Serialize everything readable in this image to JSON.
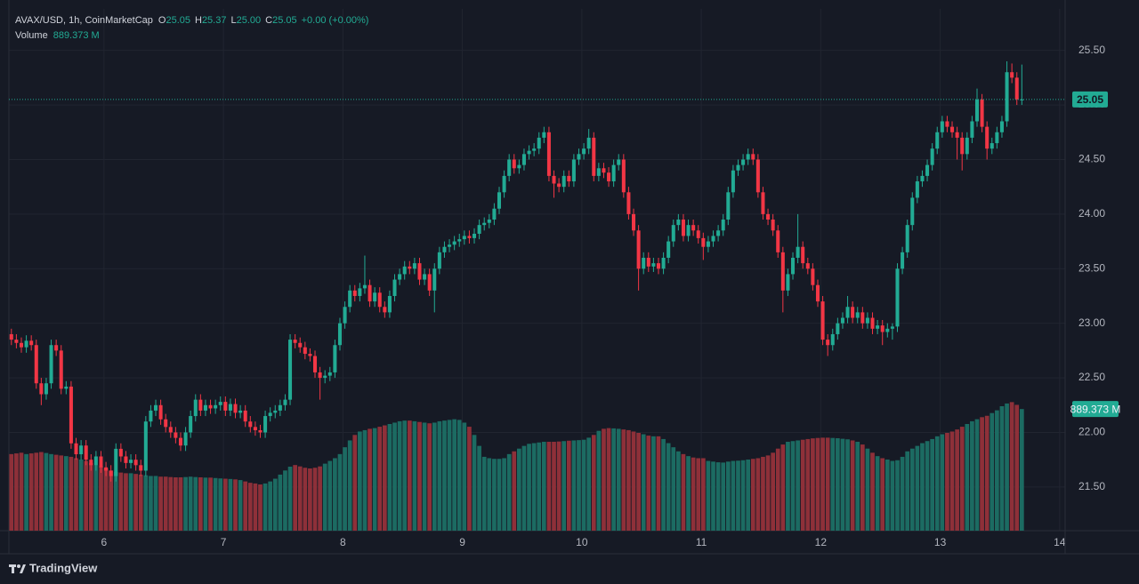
{
  "chart_data": {
    "type": "candlestick",
    "title": "AVAX/USD, 1h, CoinMarketCap",
    "ohlc_keys": [
      "O",
      "H",
      "L",
      "C"
    ],
    "ohlc_labels": [
      "25.05",
      "25.37",
      "25.00",
      "25.05"
    ],
    "change": "+0.00 (+0.00%)",
    "volume_title": "Volume",
    "volume_label": "889.373 M",
    "up_color": "#22ab94",
    "down_color": "#f23645",
    "volume_up_color": "#1c6b62",
    "volume_down_color": "#8e3039",
    "grid": true,
    "last_price_line": true,
    "xlim": [
      0,
      212.2
    ],
    "xticks": [
      {
        "value": 19.1,
        "label": "6"
      },
      {
        "value": 43.1,
        "label": "7"
      },
      {
        "value": 67.1,
        "label": "8"
      },
      {
        "value": 91.1,
        "label": "9"
      },
      {
        "value": 115.1,
        "label": "10"
      },
      {
        "value": 139.1,
        "label": "11"
      },
      {
        "value": 163.1,
        "label": "12"
      },
      {
        "value": 187.1,
        "label": "13"
      },
      {
        "value": 211.1,
        "label": "14"
      }
    ],
    "ylim": [
      21.1,
      25.88
    ],
    "yticks": [
      {
        "value": 21.5,
        "label": "21.50"
      },
      {
        "value": 22,
        "label": "22.00"
      },
      {
        "value": 22.5,
        "label": "22.50"
      },
      {
        "value": 23,
        "label": "23.00"
      },
      {
        "value": 23.5,
        "label": "23.50"
      },
      {
        "value": 24,
        "label": "24.00"
      },
      {
        "value": 24.5,
        "label": "24.50"
      },
      {
        "value": 25,
        "label": "25.00"
      },
      {
        "value": 25.5,
        "label": "25.50"
      }
    ],
    "vlim": [
      0,
      1040
    ],
    "candles": [
      [
        22.9,
        22.95,
        22.8,
        22.85
      ],
      [
        22.85,
        22.9,
        22.77,
        22.82
      ],
      [
        22.82,
        22.87,
        22.73,
        22.78
      ],
      [
        22.78,
        22.89,
        22.73,
        22.84
      ],
      [
        22.84,
        22.89,
        22.75,
        22.8
      ],
      [
        22.8,
        22.85,
        22.4,
        22.45
      ],
      [
        22.45,
        22.5,
        22.25,
        22.35
      ],
      [
        22.35,
        22.5,
        22.3,
        22.45
      ],
      [
        22.45,
        22.85,
        22.4,
        22.8
      ],
      [
        22.8,
        22.85,
        22.7,
        22.75
      ],
      [
        22.75,
        22.8,
        22.35,
        22.4
      ],
      [
        22.4,
        22.47,
        22.35,
        22.42
      ],
      [
        22.42,
        22.47,
        21.85,
        21.9
      ],
      [
        21.9,
        21.95,
        21.75,
        21.8
      ],
      [
        21.8,
        21.93,
        21.75,
        21.88
      ],
      [
        21.88,
        21.93,
        21.7,
        21.75
      ],
      [
        21.75,
        21.8,
        21.65,
        21.7
      ],
      [
        21.7,
        21.83,
        21.65,
        21.78
      ],
      [
        21.78,
        21.83,
        21.63,
        21.68
      ],
      [
        21.68,
        21.73,
        21.6,
        21.65
      ],
      [
        21.65,
        21.7,
        21.55,
        21.6
      ],
      [
        21.6,
        21.9,
        21.55,
        21.85
      ],
      [
        21.85,
        21.9,
        21.73,
        21.78
      ],
      [
        21.78,
        21.83,
        21.67,
        21.72
      ],
      [
        21.72,
        21.8,
        21.67,
        21.75
      ],
      [
        21.75,
        21.8,
        21.65,
        21.7
      ],
      [
        21.7,
        21.75,
        21.6,
        21.65
      ],
      [
        21.65,
        22.15,
        21.6,
        22.1
      ],
      [
        22.1,
        22.25,
        22.05,
        22.2
      ],
      [
        22.2,
        22.3,
        22.15,
        22.25
      ],
      [
        22.25,
        22.3,
        22.07,
        22.12
      ],
      [
        22.12,
        22.17,
        22.0,
        22.05
      ],
      [
        22.05,
        22.1,
        21.95,
        22.0
      ],
      [
        22.0,
        22.05,
        21.9,
        21.95
      ],
      [
        21.95,
        22.0,
        21.83,
        21.88
      ],
      [
        21.88,
        22.05,
        21.83,
        22.0
      ],
      [
        22.0,
        22.2,
        21.95,
        22.15
      ],
      [
        22.15,
        22.35,
        22.1,
        22.3
      ],
      [
        22.3,
        22.35,
        22.15,
        22.2
      ],
      [
        22.2,
        22.3,
        22.15,
        22.25
      ],
      [
        22.25,
        22.3,
        22.17,
        22.22
      ],
      [
        22.22,
        22.3,
        22.17,
        22.25
      ],
      [
        22.25,
        22.33,
        22.2,
        22.28
      ],
      [
        22.28,
        22.33,
        22.15,
        22.2
      ],
      [
        22.2,
        22.31,
        22.15,
        22.26
      ],
      [
        22.26,
        22.31,
        22.13,
        22.18
      ],
      [
        22.18,
        22.25,
        22.13,
        22.2
      ],
      [
        22.2,
        22.25,
        22.05,
        22.1
      ],
      [
        22.1,
        22.15,
        22.0,
        22.05
      ],
      [
        22.05,
        22.1,
        21.97,
        22.02
      ],
      [
        22.02,
        22.07,
        21.95,
        22.0
      ],
      [
        22.0,
        22.2,
        21.95,
        22.15
      ],
      [
        22.15,
        22.23,
        22.1,
        22.18
      ],
      [
        22.18,
        22.25,
        22.13,
        22.2
      ],
      [
        22.2,
        22.3,
        22.15,
        22.25
      ],
      [
        22.25,
        22.35,
        22.2,
        22.3
      ],
      [
        22.3,
        22.9,
        22.25,
        22.85
      ],
      [
        22.85,
        22.9,
        22.77,
        22.82
      ],
      [
        22.82,
        22.87,
        22.73,
        22.78
      ],
      [
        22.78,
        22.83,
        22.67,
        22.72
      ],
      [
        22.72,
        22.77,
        22.65,
        22.7
      ],
      [
        22.7,
        22.75,
        22.5,
        22.55
      ],
      [
        22.55,
        22.6,
        22.3,
        22.5
      ],
      [
        22.5,
        22.57,
        22.45,
        22.52
      ],
      [
        22.52,
        22.6,
        22.47,
        22.55
      ],
      [
        22.55,
        22.85,
        22.5,
        22.8
      ],
      [
        22.8,
        23.05,
        22.75,
        23.0
      ],
      [
        23.0,
        23.2,
        22.95,
        23.15
      ],
      [
        23.15,
        23.35,
        23.1,
        23.3
      ],
      [
        23.3,
        23.35,
        23.2,
        23.25
      ],
      [
        23.25,
        23.37,
        23.2,
        23.32
      ],
      [
        23.32,
        23.62,
        23.27,
        23.35
      ],
      [
        23.35,
        23.4,
        23.15,
        23.2
      ],
      [
        23.2,
        23.33,
        23.15,
        23.28
      ],
      [
        23.28,
        23.33,
        23.1,
        23.15
      ],
      [
        23.15,
        23.2,
        23.05,
        23.1
      ],
      [
        23.1,
        23.3,
        23.05,
        23.25
      ],
      [
        23.25,
        23.45,
        23.2,
        23.4
      ],
      [
        23.4,
        23.5,
        23.35,
        23.45
      ],
      [
        23.45,
        23.57,
        23.4,
        23.52
      ],
      [
        23.52,
        23.57,
        23.45,
        23.5
      ],
      [
        23.5,
        23.6,
        23.45,
        23.55
      ],
      [
        23.55,
        23.6,
        23.35,
        23.4
      ],
      [
        23.4,
        23.5,
        23.35,
        23.45
      ],
      [
        23.45,
        23.5,
        23.25,
        23.3
      ],
      [
        23.3,
        23.55,
        23.1,
        23.5
      ],
      [
        23.5,
        23.7,
        23.45,
        23.65
      ],
      [
        23.65,
        23.75,
        23.6,
        23.7
      ],
      [
        23.7,
        23.77,
        23.65,
        23.72
      ],
      [
        23.72,
        23.8,
        23.67,
        23.75
      ],
      [
        23.75,
        23.82,
        23.7,
        23.77
      ],
      [
        23.77,
        23.85,
        23.72,
        23.8
      ],
      [
        23.8,
        23.85,
        23.73,
        23.78
      ],
      [
        23.78,
        23.87,
        23.73,
        23.82
      ],
      [
        23.82,
        23.95,
        23.77,
        23.9
      ],
      [
        23.9,
        23.97,
        23.85,
        23.92
      ],
      [
        23.92,
        24.0,
        23.87,
        23.95
      ],
      [
        23.95,
        24.1,
        23.9,
        24.05
      ],
      [
        24.05,
        24.25,
        24.0,
        24.2
      ],
      [
        24.2,
        24.4,
        24.15,
        24.35
      ],
      [
        24.35,
        24.55,
        24.3,
        24.5
      ],
      [
        24.5,
        24.55,
        24.37,
        24.42
      ],
      [
        24.42,
        24.5,
        24.37,
        24.45
      ],
      [
        24.45,
        24.6,
        24.4,
        24.55
      ],
      [
        24.55,
        24.63,
        24.5,
        24.58
      ],
      [
        24.58,
        24.65,
        24.53,
        24.6
      ],
      [
        24.6,
        24.75,
        24.55,
        24.7
      ],
      [
        24.7,
        24.8,
        24.65,
        24.75
      ],
      [
        24.75,
        24.8,
        24.3,
        24.35
      ],
      [
        24.35,
        24.4,
        24.15,
        24.28
      ],
      [
        24.28,
        24.33,
        24.2,
        24.25
      ],
      [
        24.25,
        24.4,
        24.2,
        24.35
      ],
      [
        24.35,
        24.4,
        24.25,
        24.3
      ],
      [
        24.3,
        24.55,
        24.25,
        24.5
      ],
      [
        24.5,
        24.6,
        24.45,
        24.55
      ],
      [
        24.55,
        24.65,
        24.5,
        24.6
      ],
      [
        24.6,
        24.78,
        24.55,
        24.7
      ],
      [
        24.7,
        24.75,
        24.3,
        24.35
      ],
      [
        24.35,
        24.47,
        24.3,
        24.42
      ],
      [
        24.42,
        24.47,
        24.33,
        24.38
      ],
      [
        24.38,
        24.43,
        24.25,
        24.3
      ],
      [
        24.3,
        24.5,
        24.25,
        24.45
      ],
      [
        24.45,
        24.55,
        24.4,
        24.5
      ],
      [
        24.5,
        24.55,
        24.15,
        24.2
      ],
      [
        24.2,
        24.25,
        23.95,
        24.0
      ],
      [
        24.0,
        24.05,
        23.8,
        23.85
      ],
      [
        23.85,
        23.9,
        23.3,
        23.5
      ],
      [
        23.5,
        23.65,
        23.45,
        23.6
      ],
      [
        23.6,
        23.65,
        23.47,
        23.52
      ],
      [
        23.52,
        23.6,
        23.47,
        23.55
      ],
      [
        23.55,
        23.6,
        23.45,
        23.5
      ],
      [
        23.5,
        23.65,
        23.45,
        23.6
      ],
      [
        23.6,
        23.8,
        23.55,
        23.75
      ],
      [
        23.75,
        23.95,
        23.7,
        23.9
      ],
      [
        23.9,
        24.0,
        23.85,
        23.95
      ],
      [
        23.95,
        24.0,
        23.75,
        23.8
      ],
      [
        23.8,
        23.95,
        23.75,
        23.9
      ],
      [
        23.9,
        23.95,
        23.8,
        23.85
      ],
      [
        23.85,
        23.9,
        23.73,
        23.78
      ],
      [
        23.78,
        23.83,
        23.58,
        23.7
      ],
      [
        23.7,
        23.8,
        23.65,
        23.75
      ],
      [
        23.75,
        23.85,
        23.7,
        23.8
      ],
      [
        23.8,
        23.9,
        23.75,
        23.85
      ],
      [
        23.85,
        24.0,
        23.8,
        23.95
      ],
      [
        23.95,
        24.25,
        23.9,
        24.2
      ],
      [
        24.2,
        24.45,
        24.15,
        24.4
      ],
      [
        24.4,
        24.5,
        24.35,
        24.45
      ],
      [
        24.45,
        24.55,
        24.4,
        24.5
      ],
      [
        24.5,
        24.6,
        24.45,
        24.55
      ],
      [
        24.55,
        24.6,
        24.45,
        24.5
      ],
      [
        24.5,
        24.55,
        24.15,
        24.2
      ],
      [
        24.2,
        24.25,
        23.95,
        24.0
      ],
      [
        24.0,
        24.05,
        23.9,
        23.95
      ],
      [
        23.95,
        24.0,
        23.8,
        23.85
      ],
      [
        23.85,
        23.9,
        23.6,
        23.65
      ],
      [
        23.65,
        23.7,
        23.1,
        23.3
      ],
      [
        23.3,
        23.5,
        23.25,
        23.45
      ],
      [
        23.45,
        23.65,
        23.4,
        23.6
      ],
      [
        23.6,
        24.0,
        23.55,
        23.7
      ],
      [
        23.7,
        23.75,
        23.5,
        23.55
      ],
      [
        23.55,
        23.6,
        23.45,
        23.5
      ],
      [
        23.5,
        23.55,
        23.3,
        23.35
      ],
      [
        23.35,
        23.4,
        23.15,
        23.2
      ],
      [
        23.2,
        23.25,
        22.8,
        22.85
      ],
      [
        22.85,
        22.9,
        22.7,
        22.8
      ],
      [
        22.8,
        22.95,
        22.75,
        22.9
      ],
      [
        22.9,
        23.05,
        22.85,
        23.0
      ],
      [
        23.0,
        23.1,
        22.95,
        23.05
      ],
      [
        23.05,
        23.25,
        23.0,
        23.15
      ],
      [
        23.15,
        23.2,
        23.0,
        23.05
      ],
      [
        23.05,
        23.15,
        23.0,
        23.1
      ],
      [
        23.1,
        23.15,
        22.95,
        23.0
      ],
      [
        23.0,
        23.1,
        22.95,
        23.05
      ],
      [
        23.05,
        23.1,
        22.9,
        22.95
      ],
      [
        22.95,
        23.03,
        22.9,
        22.98
      ],
      [
        22.98,
        23.03,
        22.8,
        22.92
      ],
      [
        22.92,
        23.0,
        22.87,
        22.95
      ],
      [
        22.95,
        23.0,
        22.85,
        22.97
      ],
      [
        22.97,
        23.55,
        22.92,
        23.5
      ],
      [
        23.5,
        23.7,
        23.45,
        23.65
      ],
      [
        23.65,
        23.95,
        23.6,
        23.9
      ],
      [
        23.9,
        24.2,
        23.85,
        24.15
      ],
      [
        24.15,
        24.35,
        24.1,
        24.3
      ],
      [
        24.3,
        24.4,
        24.25,
        24.35
      ],
      [
        24.35,
        24.5,
        24.3,
        24.45
      ],
      [
        24.45,
        24.65,
        24.4,
        24.6
      ],
      [
        24.6,
        24.8,
        24.55,
        24.75
      ],
      [
        24.75,
        24.9,
        24.7,
        24.85
      ],
      [
        24.85,
        24.9,
        24.75,
        24.8
      ],
      [
        24.8,
        24.85,
        24.7,
        24.75
      ],
      [
        24.75,
        24.8,
        24.5,
        24.7
      ],
      [
        24.7,
        24.75,
        24.4,
        24.55
      ],
      [
        24.55,
        24.75,
        24.5,
        24.7
      ],
      [
        24.7,
        24.9,
        24.65,
        24.85
      ],
      [
        24.85,
        25.15,
        24.8,
        25.05
      ],
      [
        25.05,
        25.1,
        24.75,
        24.8
      ],
      [
        24.8,
        24.85,
        24.5,
        24.6
      ],
      [
        24.6,
        24.7,
        24.55,
        24.65
      ],
      [
        24.65,
        24.8,
        24.6,
        24.75
      ],
      [
        24.75,
        24.9,
        24.7,
        24.85
      ],
      [
        24.85,
        25.4,
        24.8,
        25.3
      ],
      [
        25.3,
        25.38,
        25.2,
        25.25
      ],
      [
        25.25,
        25.3,
        25.0,
        25.05
      ],
      [
        25.05,
        25.37,
        25.0,
        25.05
      ]
    ],
    "volumes": [
      560,
      565,
      570,
      560,
      565,
      570,
      575,
      568,
      560,
      555,
      550,
      545,
      540,
      530,
      520,
      510,
      495,
      480,
      470,
      455,
      440,
      430,
      425,
      420,
      420,
      415,
      410,
      405,
      400,
      400,
      395,
      395,
      392,
      390,
      390,
      392,
      395,
      392,
      390,
      388,
      388,
      385,
      382,
      380,
      378,
      375,
      370,
      360,
      350,
      345,
      338,
      345,
      360,
      380,
      410,
      440,
      468,
      480,
      470,
      460,
      455,
      460,
      470,
      490,
      510,
      530,
      560,
      610,
      660,
      700,
      725,
      735,
      745,
      750,
      760,
      770,
      780,
      790,
      800,
      805,
      805,
      800,
      795,
      790,
      785,
      790,
      800,
      805,
      810,
      815,
      810,
      790,
      760,
      700,
      620,
      540,
      530,
      525,
      525,
      530,
      560,
      580,
      600,
      620,
      635,
      640,
      645,
      650,
      650,
      650,
      652,
      655,
      658,
      660,
      662,
      665,
      680,
      700,
      730,
      745,
      750,
      748,
      745,
      740,
      735,
      725,
      715,
      705,
      695,
      690,
      690,
      670,
      640,
      610,
      580,
      560,
      545,
      535,
      530,
      530,
      510,
      505,
      500,
      498,
      505,
      510,
      512,
      515,
      520,
      525,
      530,
      540,
      550,
      570,
      600,
      630,
      650,
      655,
      660,
      665,
      670,
      675,
      678,
      680,
      680,
      678,
      676,
      672,
      668,
      660,
      650,
      630,
      600,
      570,
      545,
      530,
      520,
      510,
      515,
      540,
      580,
      600,
      620,
      640,
      655,
      670,
      690,
      705,
      715,
      725,
      740,
      760,
      780,
      800,
      815,
      830,
      840,
      860,
      880,
      910,
      930,
      940,
      920,
      889.373
    ]
  },
  "branding": "TradingView"
}
